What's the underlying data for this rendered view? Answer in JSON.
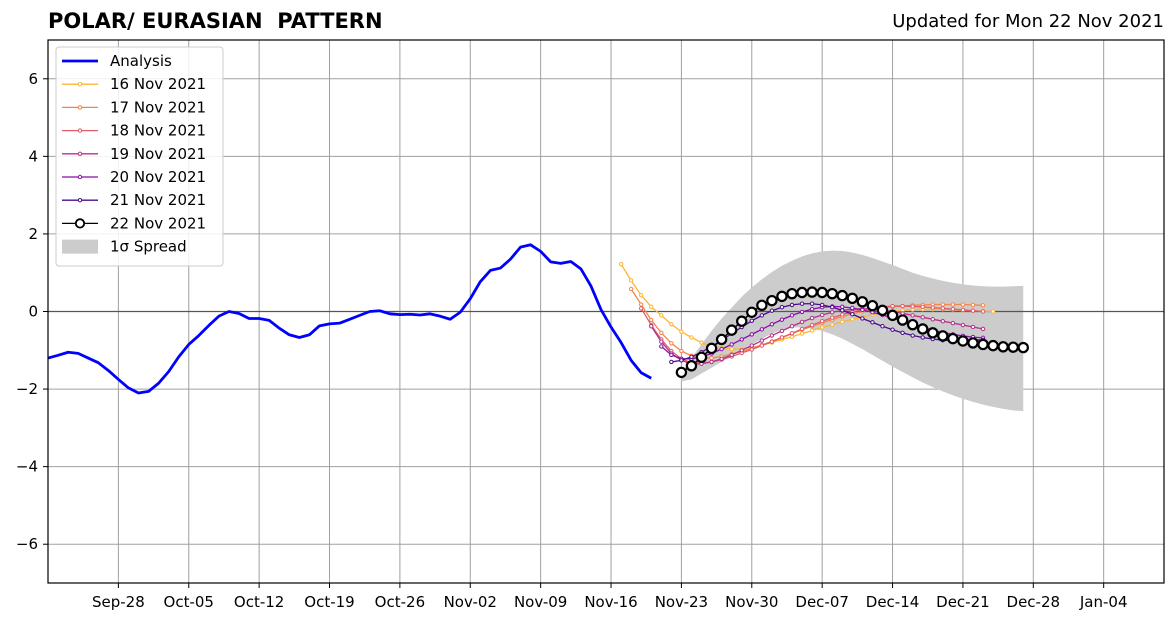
{
  "chart_data": {
    "type": "line",
    "title": "POLAR/ EURASIAN  PATTERN",
    "subtitle": "Updated for Mon 22 Nov 2021",
    "xlabel": "",
    "ylabel": "",
    "ylim": [
      -7,
      7
    ],
    "xlim": [
      "2021-09-21",
      "2022-01-10"
    ],
    "yticks": [
      -6,
      -4,
      -2,
      0,
      2,
      4,
      6
    ],
    "ytick_labels": [
      "−6",
      "−4",
      "−2",
      "0",
      "2",
      "4",
      "6"
    ],
    "xtick_labels": [
      "Sep-28",
      "Oct-05",
      "Oct-12",
      "Oct-19",
      "Oct-26",
      "Nov-02",
      "Nov-09",
      "Nov-16",
      "Nov-23",
      "Nov-30",
      "Dec-07",
      "Dec-14",
      "Dec-21",
      "Dec-28",
      "Jan-04"
    ],
    "xtick_dates": [
      "2021-09-28",
      "2021-10-05",
      "2021-10-12",
      "2021-10-19",
      "2021-10-26",
      "2021-11-02",
      "2021-11-09",
      "2021-11-16",
      "2021-11-23",
      "2021-11-30",
      "2021-12-07",
      "2021-12-14",
      "2021-12-21",
      "2021-12-28",
      "2022-01-04"
    ],
    "grid": true,
    "legend_position": "top-left",
    "analysis": {
      "name": "Analysis",
      "color": "#0000ff",
      "start": "2021-09-21",
      "values": [
        -1.2,
        -1.13,
        -1.05,
        -1.08,
        -1.2,
        -1.32,
        -1.52,
        -1.75,
        -1.97,
        -2.1,
        -2.06,
        -1.85,
        -1.55,
        -1.17,
        -0.85,
        -0.62,
        -0.36,
        -0.12,
        0.0,
        -0.05,
        -0.18,
        -0.18,
        -0.23,
        -0.43,
        -0.6,
        -0.67,
        -0.6,
        -0.37,
        -0.32,
        -0.3,
        -0.2,
        -0.1,
        0.0,
        0.02,
        -0.06,
        -0.08,
        -0.07,
        -0.09,
        -0.06,
        -0.12,
        -0.2,
        -0.02,
        0.33,
        0.77,
        1.06,
        1.12,
        1.35,
        1.66,
        1.72,
        1.55,
        1.28,
        1.24,
        1.29,
        1.1,
        0.66,
        0.05,
        -0.4,
        -0.8,
        -1.26,
        -1.58,
        -1.72
      ]
    },
    "forecasts": [
      {
        "name": "16 Nov 2021",
        "color": "#ffb530",
        "start": "2021-11-17",
        "values": [
          1.22,
          0.8,
          0.42,
          0.12,
          -0.1,
          -0.33,
          -0.52,
          -0.67,
          -0.8,
          -0.9,
          -0.95,
          -0.97,
          -0.96,
          -0.93,
          -0.87,
          -0.8,
          -0.72,
          -0.65,
          -0.57,
          -0.49,
          -0.41,
          -0.34,
          -0.27,
          -0.2,
          -0.14,
          -0.08,
          -0.03,
          0.0,
          0.03,
          0.05,
          0.06,
          0.06,
          0.06,
          0.05,
          0.03,
          0.02,
          0.01,
          0.0
        ]
      },
      {
        "name": "17 Nov 2021",
        "color": "#f5854a",
        "start": "2021-11-18",
        "values": [
          0.58,
          0.18,
          -0.22,
          -0.55,
          -0.82,
          -1.02,
          -1.14,
          -1.2,
          -1.2,
          -1.16,
          -1.1,
          -1.03,
          -0.95,
          -0.86,
          -0.77,
          -0.67,
          -0.57,
          -0.47,
          -0.38,
          -0.29,
          -0.21,
          -0.13,
          -0.06,
          0.0,
          0.05,
          0.09,
          0.12,
          0.14,
          0.16,
          0.17,
          0.18,
          0.18,
          0.18,
          0.18,
          0.17,
          0.16
        ]
      },
      {
        "name": "18 Nov 2021",
        "color": "#e15c6a",
        "start": "2021-11-19",
        "values": [
          0.08,
          -0.35,
          -0.72,
          -1.02,
          -1.22,
          -1.32,
          -1.33,
          -1.3,
          -1.24,
          -1.16,
          -1.07,
          -0.98,
          -0.88,
          -0.78,
          -0.67,
          -0.56,
          -0.45,
          -0.35,
          -0.25,
          -0.16,
          -0.08,
          -0.01,
          0.05,
          0.09,
          0.12,
          0.14,
          0.14,
          0.13,
          0.12,
          0.1,
          0.08,
          0.06,
          0.04,
          0.02,
          0.0
        ]
      },
      {
        "name": "19 Nov 2021",
        "color": "#b5338a",
        "start": "2021-11-20",
        "values": [
          -0.38,
          -0.78,
          -1.08,
          -1.26,
          -1.35,
          -1.35,
          -1.3,
          -1.22,
          -1.12,
          -1.0,
          -0.88,
          -0.75,
          -0.62,
          -0.5,
          -0.38,
          -0.27,
          -0.17,
          -0.09,
          -0.02,
          0.03,
          0.06,
          0.07,
          0.06,
          0.03,
          0.0,
          -0.05,
          -0.1,
          -0.15,
          -0.2,
          -0.25,
          -0.3,
          -0.35,
          -0.4,
          -0.45
        ]
      },
      {
        "name": "20 Nov 2021",
        "color": "#8a0fa8",
        "start": "2021-11-21",
        "values": [
          -0.9,
          -1.12,
          -1.22,
          -1.22,
          -1.17,
          -1.08,
          -0.97,
          -0.85,
          -0.72,
          -0.59,
          -0.46,
          -0.33,
          -0.21,
          -0.1,
          -0.01,
          0.06,
          0.11,
          0.13,
          0.12,
          0.09,
          0.04,
          -0.02,
          -0.09,
          -0.17,
          -0.25,
          -0.33,
          -0.41,
          -0.48,
          -0.54,
          -0.59,
          -0.63,
          -0.66,
          -0.68
        ]
      },
      {
        "name": "21 Nov 2021",
        "color": "#4b0c8c",
        "start": "2021-11-22",
        "values": [
          -1.3,
          -1.26,
          -1.17,
          -1.05,
          -0.9,
          -0.74,
          -0.57,
          -0.4,
          -0.24,
          -0.1,
          0.02,
          0.11,
          0.17,
          0.2,
          0.2,
          0.17,
          0.11,
          0.03,
          -0.07,
          -0.18,
          -0.28,
          -0.38,
          -0.47,
          -0.55,
          -0.62,
          -0.67,
          -0.71,
          -0.74,
          -0.75,
          -0.75,
          -0.74,
          -0.73
        ]
      },
      {
        "name": "22 Nov 2021",
        "color": "#000000",
        "start": "2021-11-23",
        "values": [
          -1.57,
          -1.4,
          -1.18,
          -0.95,
          -0.72,
          -0.48,
          -0.25,
          -0.02,
          0.16,
          0.28,
          0.39,
          0.46,
          0.49,
          0.5,
          0.49,
          0.46,
          0.41,
          0.34,
          0.25,
          0.15,
          0.03,
          -0.1,
          -0.22,
          -0.34,
          -0.45,
          -0.55,
          -0.63,
          -0.7,
          -0.76,
          -0.81,
          -0.85,
          -0.88,
          -0.91,
          -0.92,
          -0.93
        ]
      }
    ],
    "spread": {
      "name": "1σ Spread",
      "color": "#cccccc",
      "start": "2021-11-23",
      "upper": [
        -1.57,
        -1.2,
        -0.85,
        -0.5,
        -0.18,
        0.1,
        0.38,
        0.62,
        0.83,
        1.02,
        1.18,
        1.31,
        1.42,
        1.5,
        1.55,
        1.57,
        1.56,
        1.52,
        1.46,
        1.38,
        1.29,
        1.2,
        1.1,
        1.0,
        0.92,
        0.85,
        0.79,
        0.74,
        0.7,
        0.67,
        0.65,
        0.64,
        0.64,
        0.65,
        0.66
      ],
      "lower": [
        -1.8,
        -1.75,
        -1.6,
        -1.45,
        -1.3,
        -1.15,
        -1.0,
        -0.85,
        -0.7,
        -0.57,
        -0.47,
        -0.41,
        -0.41,
        -0.44,
        -0.5,
        -0.59,
        -0.7,
        -0.83,
        -0.97,
        -1.12,
        -1.27,
        -1.42,
        -1.56,
        -1.7,
        -1.83,
        -1.95,
        -2.06,
        -2.16,
        -2.25,
        -2.33,
        -2.4,
        -2.46,
        -2.51,
        -2.55,
        -2.57
      ]
    }
  }
}
